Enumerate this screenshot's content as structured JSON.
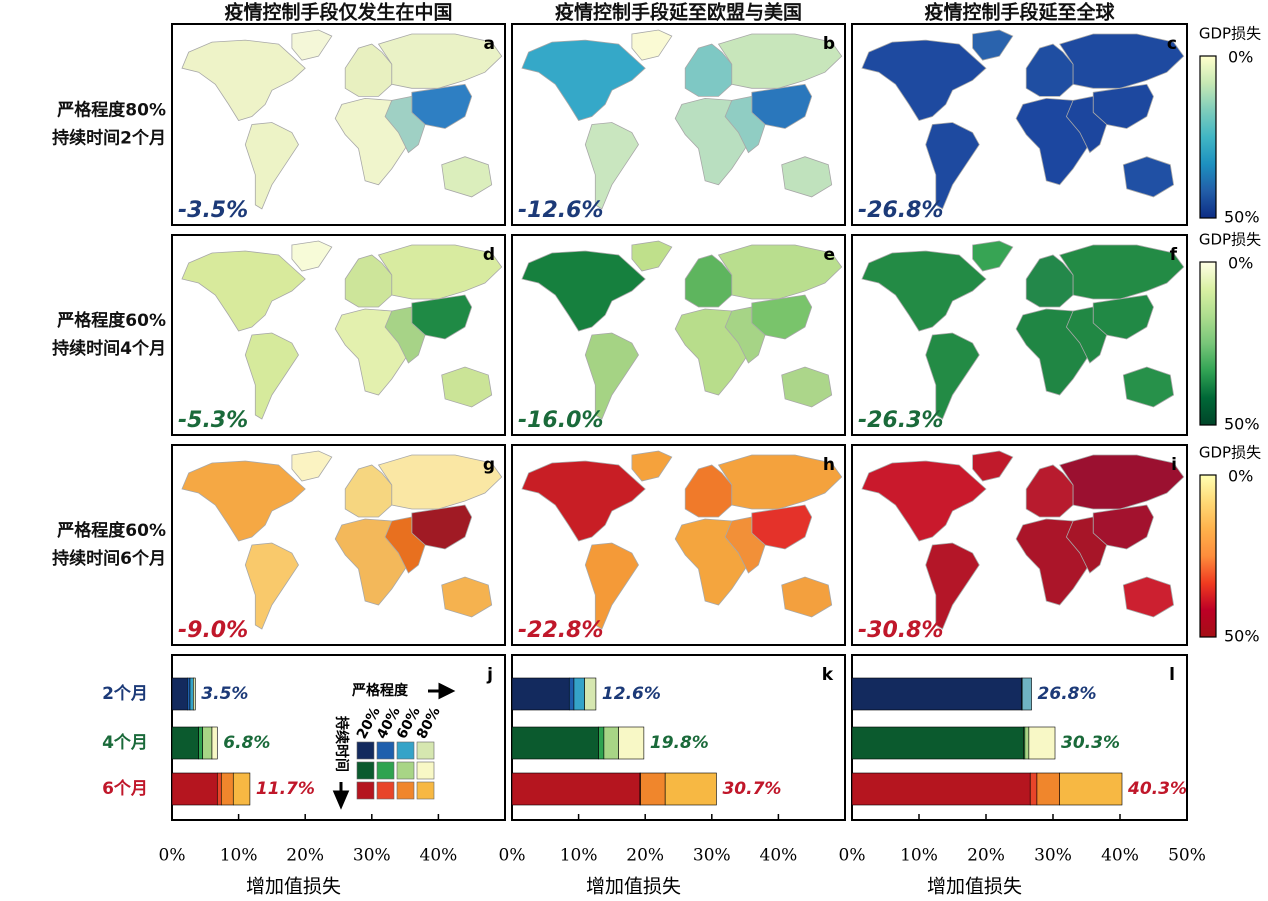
{
  "column_titles": [
    "疫情控制手段仅发生在中国",
    "疫情控制手段延至欧盟与美国",
    "疫情控制手段延至全球"
  ],
  "rows": [
    {
      "label_lines": [
        "严格程度80%",
        "持续时间2个月"
      ],
      "color": "#1c3a78"
    },
    {
      "label_lines": [
        "严格程度60%",
        "持续时间4个月"
      ],
      "color": "#1a6a3a"
    },
    {
      "label_lines": [
        "严格程度60%",
        "持续时间6个月"
      ],
      "color": "#c0172a"
    }
  ],
  "maps": [
    {
      "letter": "a",
      "value_label": "-3.5%",
      "fills": [
        "#eef3c8",
        "#f4f7d8",
        "#edf3c6",
        "#e8f0c0",
        "#f0f5cc",
        "#eaf2c6",
        "#2e7fc3",
        "#9fd0c4",
        "#dbeebc"
      ]
    },
    {
      "letter": "b",
      "value_label": "-12.6%",
      "fills": [
        "#35a8c8",
        "#fafad4",
        "#c9e6bf",
        "#7ec8c4",
        "#b9dfc0",
        "#c8e6bb",
        "#2a77bc",
        "#90cdc3",
        "#c0e2bd"
      ]
    },
    {
      "letter": "c",
      "value_label": "-26.8%",
      "fills": [
        "#1e4aa0",
        "#2a63ad",
        "#1e4aa0",
        "#1f4ea2",
        "#1c47a0",
        "#1e4aa0",
        "#1d489f",
        "#1c469e",
        "#2050a4"
      ]
    },
    {
      "letter": "d",
      "value_label": "-5.3%",
      "fills": [
        "#d8ea9c",
        "#f7fbd8",
        "#d6ea9c",
        "#cde59a",
        "#e3f0ae",
        "#d8eba0",
        "#1f8a45",
        "#a7d387",
        "#cbe497"
      ]
    },
    {
      "letter": "e",
      "value_label": "-16.0%",
      "fills": [
        "#16803e",
        "#bfe08b",
        "#a5d384",
        "#5eb55e",
        "#b8dd8b",
        "#b9de8e",
        "#79c46b",
        "#a6d486",
        "#acd68a"
      ]
    },
    {
      "letter": "f",
      "value_label": "-26.3%",
      "fills": [
        "#238b45",
        "#37a454",
        "#238b45",
        "#23884a",
        "#208644",
        "#238b45",
        "#218945",
        "#218844",
        "#27914a"
      ]
    },
    {
      "letter": "g",
      "value_label": "-9.0%",
      "fills": [
        "#f5a844",
        "#fbf3c2",
        "#f9c96b",
        "#f6d680",
        "#f3b85a",
        "#fae7a4",
        "#a01a24",
        "#e8701f",
        "#f5b24f"
      ]
    },
    {
      "letter": "h",
      "value_label": "-22.8%",
      "fills": [
        "#c81e25",
        "#f5a23c",
        "#f49a38",
        "#f07a2a",
        "#f4a53e",
        "#f4a23d",
        "#e4322a",
        "#f29038",
        "#f3a03e"
      ]
    },
    {
      "letter": "i",
      "value_label": "-30.8%",
      "fills": [
        "#c9192c",
        "#c01a2b",
        "#b41628",
        "#b81b2e",
        "#ab1529",
        "#9b1030",
        "#a3122e",
        "#a71528",
        "#cc2030"
      ]
    }
  ],
  "colorbars": [
    {
      "title": "GDP损失",
      "top": "0%",
      "bottom": "50%",
      "colors": [
        "#ffffcc",
        "#c7e9b4",
        "#7fcdbb",
        "#41b6c4",
        "#1d91c0",
        "#225ea8",
        "#0c2c84"
      ]
    },
    {
      "title": "GDP损失",
      "top": "0%",
      "bottom": "50%",
      "colors": [
        "#ffffe5",
        "#d9f0a3",
        "#addd8e",
        "#78c679",
        "#31a354",
        "#006837",
        "#004529"
      ]
    },
    {
      "title": "GDP损失",
      "top": "0%",
      "bottom": "50%",
      "colors": [
        "#ffffb2",
        "#fed976",
        "#feb24c",
        "#fd8d3c",
        "#f03b20",
        "#bd0026",
        "#a50f15"
      ]
    }
  ],
  "chart_data": [
    {
      "type": "bar",
      "letter": "j",
      "categories": [
        "2个月",
        "4个月",
        "6个月"
      ],
      "legend_title_x": "严格程度",
      "legend_title_y": "持续时间",
      "series": [
        {
          "name": "20%",
          "colors": [
            "#132a5e",
            "#0b5a2e",
            "#b5151f"
          ],
          "values": [
            2.3,
            4.0,
            6.8
          ]
        },
        {
          "name": "40%",
          "colors": [
            "#1f5fad",
            "#2fa350",
            "#e8452a"
          ],
          "values": [
            0.4,
            0.6,
            0.6
          ]
        },
        {
          "name": "60%",
          "colors": [
            "#35a3c8",
            "#a8d586",
            "#f0862c"
          ],
          "values": [
            0.5,
            1.4,
            1.8
          ]
        },
        {
          "name": "80%",
          "colors": [
            "#d6e7b0",
            "#f8f8c6",
            "#f7b843"
          ],
          "values": [
            0.3,
            0.8,
            2.5
          ]
        }
      ],
      "totals": [
        3.5,
        6.8,
        11.7
      ],
      "total_labels": [
        "3.5%",
        "6.8%",
        "11.7%"
      ],
      "xlim": [
        0,
        50
      ],
      "xticks": [
        {
          "value": 0,
          "label": "0%"
        },
        {
          "value": 10,
          "label": "10%"
        },
        {
          "value": 20,
          "label": "20%"
        },
        {
          "value": 30,
          "label": "30%"
        },
        {
          "value": 40,
          "label": "40%"
        }
      ],
      "xlabel": "增加值损失"
    },
    {
      "type": "bar",
      "letter": "k",
      "series": [
        {
          "colors": [
            "#132a5e",
            "#0b5a2e",
            "#b5151f"
          ],
          "values": [
            8.6,
            13.0,
            19.2
          ]
        },
        {
          "colors": [
            "#1f5fad",
            "#2fa350",
            "#e8452a"
          ],
          "values": [
            0.7,
            0.8,
            0.1
          ]
        },
        {
          "colors": [
            "#35a3c8",
            "#a8d586",
            "#f0862c"
          ],
          "values": [
            1.6,
            2.2,
            3.7
          ]
        },
        {
          "colors": [
            "#d6e7b0",
            "#f8f8c6",
            "#f7b843"
          ],
          "values": [
            1.7,
            3.8,
            7.7
          ]
        }
      ],
      "totals": [
        12.6,
        19.8,
        30.7
      ],
      "total_labels": [
        "12.6%",
        "19.8%",
        "30.7%"
      ],
      "xlim": [
        0,
        50
      ],
      "xticks": [
        {
          "value": 0,
          "label": "0%"
        },
        {
          "value": 10,
          "label": "10%"
        },
        {
          "value": 20,
          "label": "20%"
        },
        {
          "value": 30,
          "label": "30%"
        },
        {
          "value": 40,
          "label": "40%"
        }
      ],
      "xlabel": "增加值损失"
    },
    {
      "type": "bar",
      "letter": "l",
      "series": [
        {
          "colors": [
            "#132a5e",
            "#0b5a2e",
            "#b5151f"
          ],
          "values": [
            25.3,
            25.6,
            26.6
          ]
        },
        {
          "colors": [
            "#1f5fad",
            "#2fa350",
            "#e8452a"
          ],
          "values": [
            0.1,
            0.2,
            1.0
          ]
        },
        {
          "colors": [
            "#6fb3c3",
            "#a8d586",
            "#f0862c"
          ],
          "values": [
            1.4,
            0.6,
            3.4
          ]
        },
        {
          "colors": [
            "#d6e7b0",
            "#f8f8c6",
            "#f7b843"
          ],
          "values": [
            0.0,
            3.9,
            9.3
          ]
        }
      ],
      "totals": [
        26.8,
        30.3,
        40.3
      ],
      "total_labels": [
        "26.8%",
        "30.3%",
        "40.3%"
      ],
      "xlim": [
        0,
        50
      ],
      "xticks": [
        {
          "value": 0,
          "label": "0%"
        },
        {
          "value": 10,
          "label": "10%"
        },
        {
          "value": 20,
          "label": "20%"
        },
        {
          "value": 30,
          "label": "30%"
        },
        {
          "value": 40,
          "label": "40%"
        },
        {
          "value": 50,
          "label": "50%"
        }
      ],
      "xlabel": "增加值损失"
    }
  ]
}
